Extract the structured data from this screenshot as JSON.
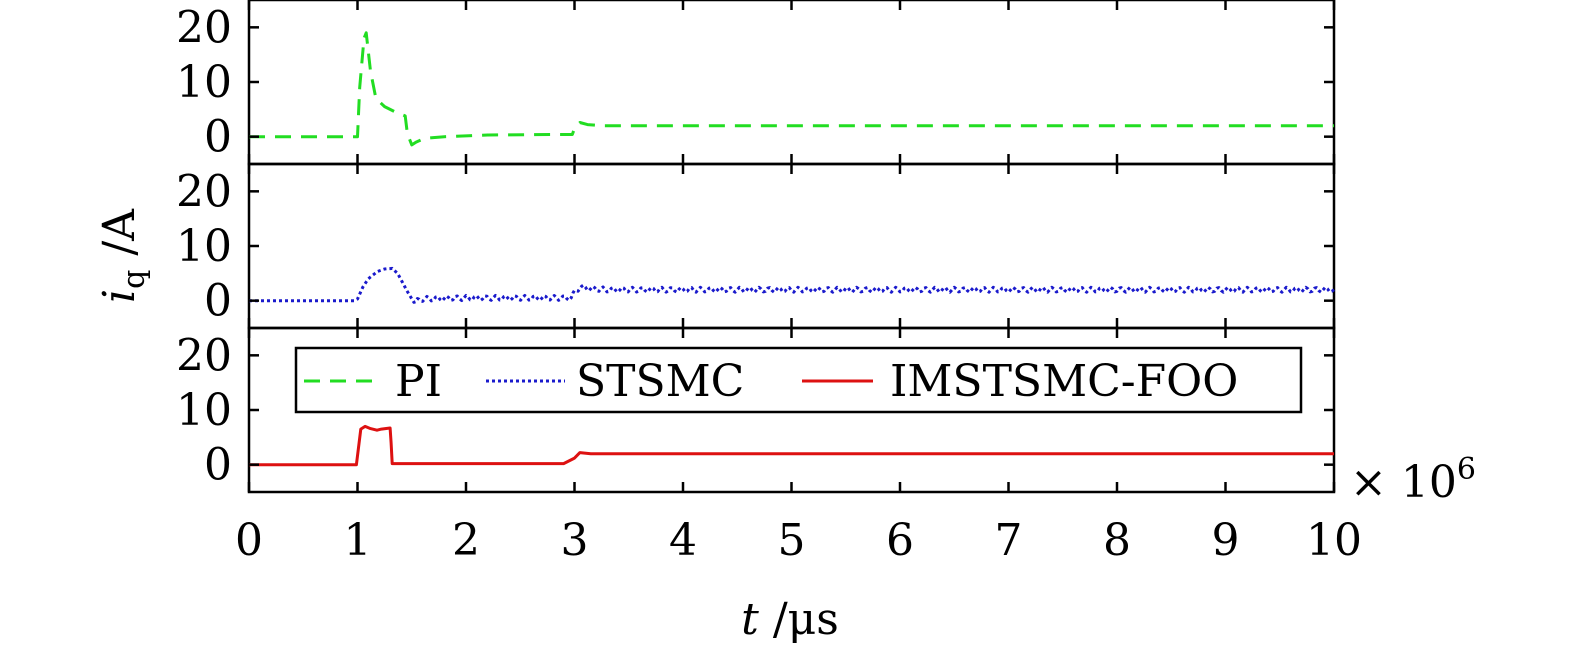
{
  "chart_data": {
    "type": "line",
    "layout": "stacked-panels",
    "x_axis": {
      "label_symbol": "t",
      "label_unit": " /μs",
      "range": [
        0,
        10
      ],
      "ticks": [
        "0",
        "1",
        "2",
        "3",
        "4",
        "5",
        "6",
        "7",
        "8",
        "9",
        "10"
      ],
      "multiplier_prefix": "× 10",
      "multiplier_exponent": "6"
    },
    "y_axis": {
      "label_symbol": "i",
      "label_subscript": "q",
      "label_unit": " /A",
      "range": [
        -5,
        25
      ],
      "ticks": [
        "0",
        "10",
        "20"
      ],
      "tick_values": [
        0,
        10,
        20
      ]
    },
    "legend": {
      "placement": "top-right of bottom panel",
      "entries": [
        "PI",
        "STSMC",
        "IMSTSMC-FOO"
      ]
    },
    "series": [
      {
        "name": "PI",
        "color": "#22dd22",
        "style": "dashed",
        "panel": 0,
        "x": [
          0,
          1.0,
          1.02,
          1.06,
          1.08,
          1.12,
          1.17,
          1.25,
          1.35,
          1.44,
          1.46,
          1.5,
          1.54,
          1.62,
          1.8,
          2.2,
          2.8,
          2.98,
          3.0,
          3.05,
          3.12,
          3.25,
          4,
          6,
          8,
          10
        ],
        "y": [
          0,
          0,
          9,
          18,
          19,
          12,
          7,
          5.5,
          4.5,
          3.8,
          0.5,
          -1.5,
          -1,
          -0.3,
          0,
          0.3,
          0.4,
          0.4,
          1.5,
          2.6,
          2.2,
          2.0,
          2.0,
          2.0,
          2.0,
          2.0
        ]
      },
      {
        "name": "STSMC",
        "color": "#1a1acc",
        "style": "dotted",
        "panel": 1,
        "x": [
          0,
          0.97,
          1.0,
          1.05,
          1.1,
          1.18,
          1.25,
          1.32,
          1.37,
          1.45,
          1.52,
          1.6,
          2.0,
          2.6,
          2.97,
          3.0,
          3.05,
          3.15,
          3.3,
          4,
          6,
          8,
          10
        ],
        "y": [
          0,
          0,
          0.3,
          2.5,
          4.0,
          5.3,
          5.8,
          5.9,
          5.0,
          2.0,
          -0.3,
          0.3,
          0.5,
          0.5,
          0.5,
          1.5,
          2.5,
          2.2,
          2.0,
          2.0,
          2.0,
          2.0,
          2.0
        ],
        "oscillation_start": 1.55,
        "oscillation_amplitude": 0.45
      },
      {
        "name": "IMSTSMC-FOO",
        "color": "#dd1111",
        "style": "solid",
        "panel": 2,
        "x": [
          0,
          0.99,
          1.03,
          1.07,
          1.12,
          1.18,
          1.22,
          1.3,
          1.31,
          1.32,
          1.37,
          2.0,
          2.9,
          3.0,
          3.05,
          3.15,
          3.3,
          10
        ],
        "y": [
          0,
          0,
          6.5,
          7.0,
          6.6,
          6.3,
          6.5,
          6.7,
          4.0,
          0.2,
          0.2,
          0.2,
          0.2,
          1.2,
          2.2,
          2.0,
          2.0,
          2.0
        ]
      }
    ]
  }
}
